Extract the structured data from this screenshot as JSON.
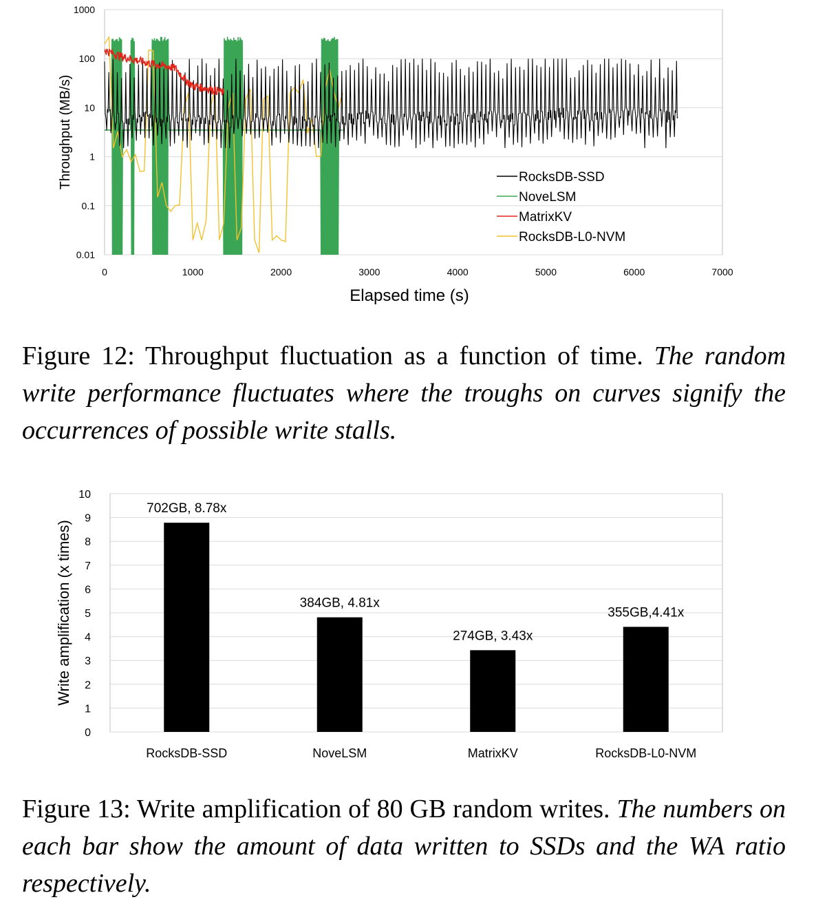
{
  "figure12": {
    "caption_label": "Figure 12: Throughput fluctuation as a function of time.",
    "caption_italic": "The random write performance fluctuates where the troughs on curves signify the occurrences of possible write stalls.",
    "chart_data": {
      "type": "line",
      "xlabel": "Elapsed time (s)",
      "ylabel": "Throughput (MB/s)",
      "xlim": [
        0,
        7000
      ],
      "ylim": [
        0.01,
        1000
      ],
      "yscale": "log",
      "grid": "horizontal",
      "legend": "bottom-right",
      "x_ticks": [
        "0",
        "1000",
        "2000",
        "3000",
        "4000",
        "5000",
        "6000",
        "7000"
      ],
      "y_ticks": [
        "0.01",
        "0.1",
        "1",
        "10",
        "100",
        "1000"
      ],
      "series": [
        {
          "name": "RocksDB-SSD",
          "color": "#000000",
          "x": [
            0,
            200,
            400,
            600,
            800,
            1000,
            1200,
            1400,
            1600,
            1800,
            2000,
            2200,
            2400,
            2600,
            2800,
            3000,
            3200,
            3400,
            3600,
            3800,
            4000,
            4200,
            4400,
            4600,
            4800,
            5000,
            5200,
            5400,
            5600,
            5800,
            6000,
            6200,
            6400,
            6500
          ],
          "values": [
            8,
            6,
            7,
            5,
            7,
            6,
            6,
            5,
            7,
            6,
            6,
            5,
            6,
            6,
            6,
            7,
            6,
            6,
            7,
            6,
            6,
            7,
            7,
            6,
            7,
            7,
            8,
            7,
            7,
            8,
            8,
            8,
            7,
            7
          ],
          "peak_max": 100,
          "trough_min": 1.5
        },
        {
          "name": "NoveLSM",
          "color": "#3aa655",
          "x": [
            0,
            200,
            400,
            600,
            800,
            1000,
            1200,
            1400,
            1600,
            1800,
            2000,
            2200,
            2400,
            2600,
            2700
          ],
          "values": [
            3.5,
            3.5,
            3.5,
            3.5,
            3.5,
            3.5,
            3.5,
            3.5,
            3.5,
            3.5,
            3.5,
            3.5,
            3.5,
            3.5,
            3.5
          ],
          "peak_max": 280,
          "trough_min": 0.01
        },
        {
          "name": "MatrixKV",
          "color": "#e0261b",
          "x": [
            0,
            200,
            400,
            600,
            800,
            900,
            1000,
            1100,
            1200,
            1300,
            1350
          ],
          "values": [
            150,
            110,
            90,
            75,
            65,
            40,
            28,
            26,
            24,
            22,
            20
          ]
        },
        {
          "name": "RocksDB-L0-NVM",
          "color": "#f2c12e",
          "x": [
            0,
            100,
            200,
            300,
            400,
            500,
            600,
            700,
            800,
            900,
            1000,
            1100,
            1200,
            1300,
            1400,
            1500,
            1600,
            1700,
            1800,
            1900,
            2000,
            2100,
            2200,
            2300,
            2400,
            2500,
            2600,
            2700
          ],
          "values": [
            200,
            1.5,
            1,
            0.8,
            0.5,
            150,
            0.15,
            0.1,
            0.1,
            10,
            0.02,
            0.02,
            10,
            0.02,
            10,
            0.02,
            15,
            0.02,
            15,
            0.02,
            0.02,
            20,
            20,
            3,
            1,
            25,
            20,
            20
          ]
        }
      ]
    }
  },
  "figure13": {
    "caption_label": "Figure 13: Write amplification of 80 GB random writes.",
    "caption_italic": "The numbers on each bar show the amount of data written to SSDs and the WA ratio respectively.",
    "chart_data": {
      "type": "bar",
      "categories": [
        "RocksDB-SSD",
        "NoveLSM",
        "MatrixKV",
        "RocksDB-L0-NVM"
      ],
      "values": [
        8.78,
        4.81,
        3.43,
        4.41
      ],
      "data_labels": [
        "702GB, 8.78x",
        "384GB, 4.81x",
        "274GB, 3.43x",
        "355GB,4.41x"
      ],
      "ylabel": "Write amplification (x times)",
      "xlabel": "",
      "ylim": [
        0,
        10
      ],
      "y_ticks": [
        "0",
        "1",
        "2",
        "3",
        "4",
        "5",
        "6",
        "7",
        "8",
        "9",
        "10"
      ],
      "grid": "horizontal",
      "bar_color": "#000000"
    }
  }
}
